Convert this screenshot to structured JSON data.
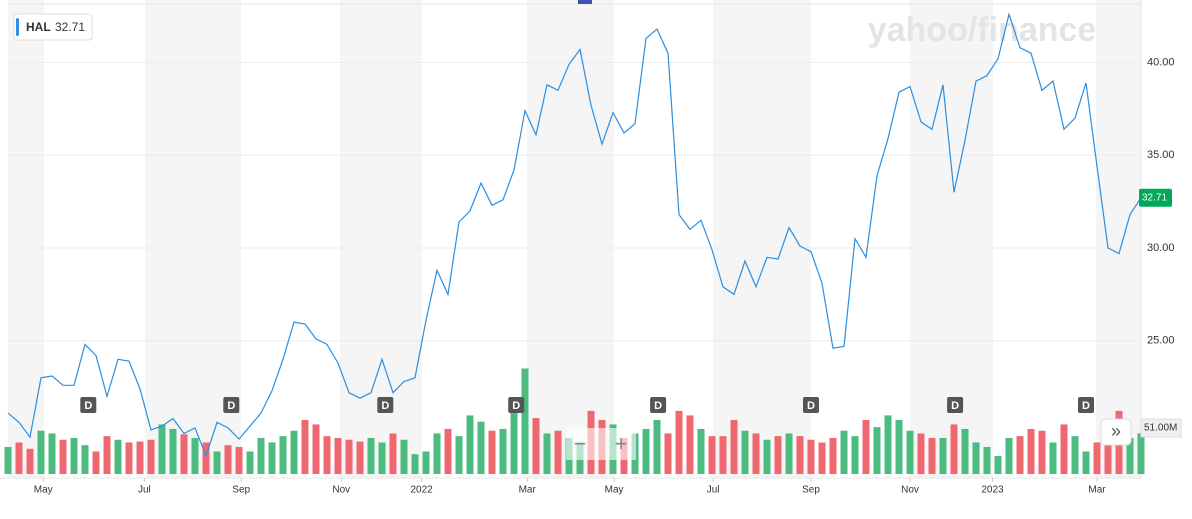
{
  "chart_data": {
    "type": "line",
    "symbol": "HAL",
    "last_price": 32.71,
    "watermark": "yahoo/finance",
    "zoom_out": "−",
    "zoom_in": "+",
    "more": "»",
    "x": [
      0,
      1,
      2,
      3,
      4,
      5,
      6,
      7,
      8,
      9,
      10,
      11,
      12,
      13,
      14,
      15,
      16,
      17,
      18,
      19,
      20,
      21,
      22,
      23,
      24,
      25,
      26,
      27,
      28,
      29,
      30,
      31,
      32,
      33,
      34,
      35,
      36,
      37,
      38,
      39,
      40,
      41,
      42,
      43,
      44,
      45,
      46,
      47,
      48,
      49,
      50,
      51,
      52,
      53,
      54,
      55,
      56,
      57,
      58,
      59,
      60,
      61,
      62,
      63,
      64,
      65,
      66,
      67,
      68,
      69,
      70,
      71,
      72,
      73,
      74,
      75,
      76,
      77,
      78,
      79,
      80,
      81,
      82,
      83,
      84,
      85,
      86,
      87,
      88,
      89,
      90,
      91,
      92,
      93,
      94,
      95,
      96,
      97,
      98,
      99,
      100,
      101,
      102,
      103
    ],
    "xlim": [
      0,
      103
    ],
    "xticks": [
      {
        "value": 3.2,
        "label": "May"
      },
      {
        "value": 12.4,
        "label": "Jul"
      },
      {
        "value": 21.2,
        "label": "Sep"
      },
      {
        "value": 30.3,
        "label": "Nov"
      },
      {
        "value": 37.6,
        "label": "2022"
      },
      {
        "value": 47.2,
        "label": "Mar"
      },
      {
        "value": 55.1,
        "label": "May"
      },
      {
        "value": 64.1,
        "label": "Jul"
      },
      {
        "value": 73.0,
        "label": "Sep"
      },
      {
        "value": 82.0,
        "label": "Nov"
      },
      {
        "value": 89.5,
        "label": "2023"
      },
      {
        "value": 99.0,
        "label": "Mar"
      }
    ],
    "ylim": [
      17.6,
      43.1
    ],
    "yticks": [
      {
        "value": 25,
        "label": "25.00"
      },
      {
        "value": 30,
        "label": "30.00"
      },
      {
        "value": 35,
        "label": "35.00"
      },
      {
        "value": 40,
        "label": "40.00"
      }
    ],
    "grid": true,
    "series": [
      {
        "color": "#2b8ee0",
        "values": [
          21.1,
          20.6,
          19.8,
          23.0,
          23.1,
          22.6,
          22.6,
          24.8,
          24.2,
          22.0,
          24.0,
          23.9,
          22.4,
          20.2,
          20.4,
          20.8,
          20.0,
          20.3,
          18.8,
          20.6,
          20.3,
          19.7,
          20.4,
          21.1,
          22.3,
          24.0,
          26.0,
          25.9,
          25.1,
          24.8,
          23.8,
          22.2,
          21.9,
          22.2,
          24.0,
          22.2,
          22.8,
          23.0,
          26.1,
          28.8,
          27.5,
          31.4,
          32.0,
          33.5,
          32.3,
          32.6,
          34.2,
          37.4,
          36.1,
          38.8,
          38.5,
          39.9,
          40.7,
          37.7,
          35.6,
          37.3,
          36.2,
          36.7,
          41.3,
          41.8,
          40.5,
          31.8,
          31.0,
          31.5,
          29.9,
          27.9,
          27.5,
          29.3,
          27.9,
          29.5,
          29.4,
          31.1,
          30.1,
          29.8,
          28.1,
          24.6,
          24.7,
          30.5,
          29.5,
          33.9,
          35.9,
          38.4,
          38.7,
          36.8,
          36.4,
          38.8,
          33.0,
          35.8,
          39.0,
          39.3,
          40.2,
          42.6,
          40.8,
          40.5,
          38.5,
          39.0,
          36.4,
          37.0,
          38.9,
          34.4,
          30.0,
          29.7,
          31.8,
          32.71
        ]
      }
    ],
    "volume": {
      "axis": "y2",
      "up_color": "#4cbb7f",
      "down_color": "#f0686f",
      "values": [
        30,
        35,
        28,
        48,
        45,
        38,
        40,
        32,
        25,
        42,
        38,
        35,
        36,
        38,
        55,
        50,
        44,
        40,
        35,
        25,
        32,
        30,
        25,
        40,
        35,
        42,
        48,
        60,
        55,
        42,
        40,
        38,
        36,
        40,
        35,
        45,
        38,
        22,
        25,
        45,
        50,
        42,
        65,
        58,
        48,
        50,
        85,
        117,
        62,
        45,
        48,
        40,
        35,
        70,
        60,
        55,
        40,
        45,
        50,
        60,
        45,
        70,
        65,
        50,
        42,
        42,
        60,
        48,
        45,
        38,
        42,
        45,
        42,
        38,
        35,
        40,
        48,
        42,
        60,
        52,
        65,
        60,
        48,
        45,
        40,
        40,
        55,
        50,
        35,
        30,
        20,
        40,
        42,
        50,
        48,
        35,
        55,
        42,
        25,
        35,
        38,
        70,
        40,
        45
      ]
    },
    "y2lim": [
      -4.4,
      520
    ],
    "y2ticks": [
      {
        "value": 51,
        "label": "51.00M"
      }
    ],
    "dividends": {
      "label": "D",
      "x": [
        7.3,
        20.3,
        34.3,
        46.2,
        59.1,
        73.0,
        86.1,
        98.0
      ]
    }
  }
}
